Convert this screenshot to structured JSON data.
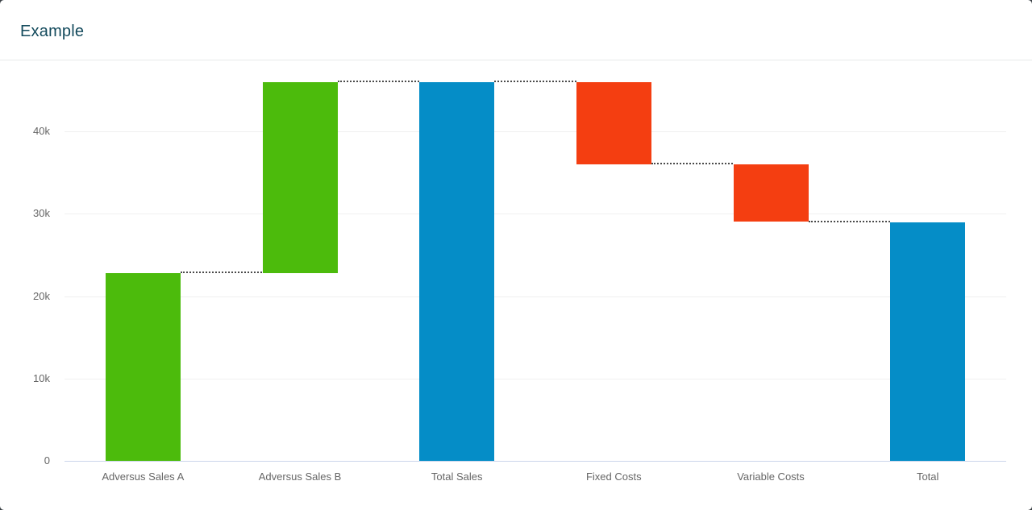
{
  "header": {
    "title": "Example"
  },
  "chart_data": {
    "type": "waterfall",
    "title": "Example",
    "categories": [
      "Adversus Sales A",
      "Adversus Sales B",
      "Total Sales",
      "Fixed Costs",
      "Variable Costs",
      "Total"
    ],
    "points": [
      {
        "name": "Adversus Sales A",
        "kind": "positive",
        "value": 22800
      },
      {
        "name": "Adversus Sales B",
        "kind": "positive",
        "value": 23200
      },
      {
        "name": "Total Sales",
        "kind": "total",
        "value": 46000
      },
      {
        "name": "Fixed Costs",
        "kind": "negative",
        "value": -10000
      },
      {
        "name": "Variable Costs",
        "kind": "negative",
        "value": -7000
      },
      {
        "name": "Total",
        "kind": "total",
        "value": 29000
      }
    ],
    "yticks": [
      {
        "value": 0,
        "label": "0"
      },
      {
        "value": 10000,
        "label": "10k"
      },
      {
        "value": 20000,
        "label": "20k"
      },
      {
        "value": 30000,
        "label": "30k"
      },
      {
        "value": 40000,
        "label": "40k"
      }
    ],
    "ylim": [
      0,
      47600
    ],
    "grid": true,
    "legend": "none",
    "connector_style": "dotted",
    "colors": {
      "positive": "#4CBB0C",
      "negative": "#F43E11",
      "total": "#058DC7",
      "gridline": "#F0F0F0",
      "axis_line": "#CCD6EB",
      "labels": "#666666",
      "connector": "#4A4A4A",
      "title": "#134A5C",
      "card_background": "#FFFFFF"
    }
  }
}
